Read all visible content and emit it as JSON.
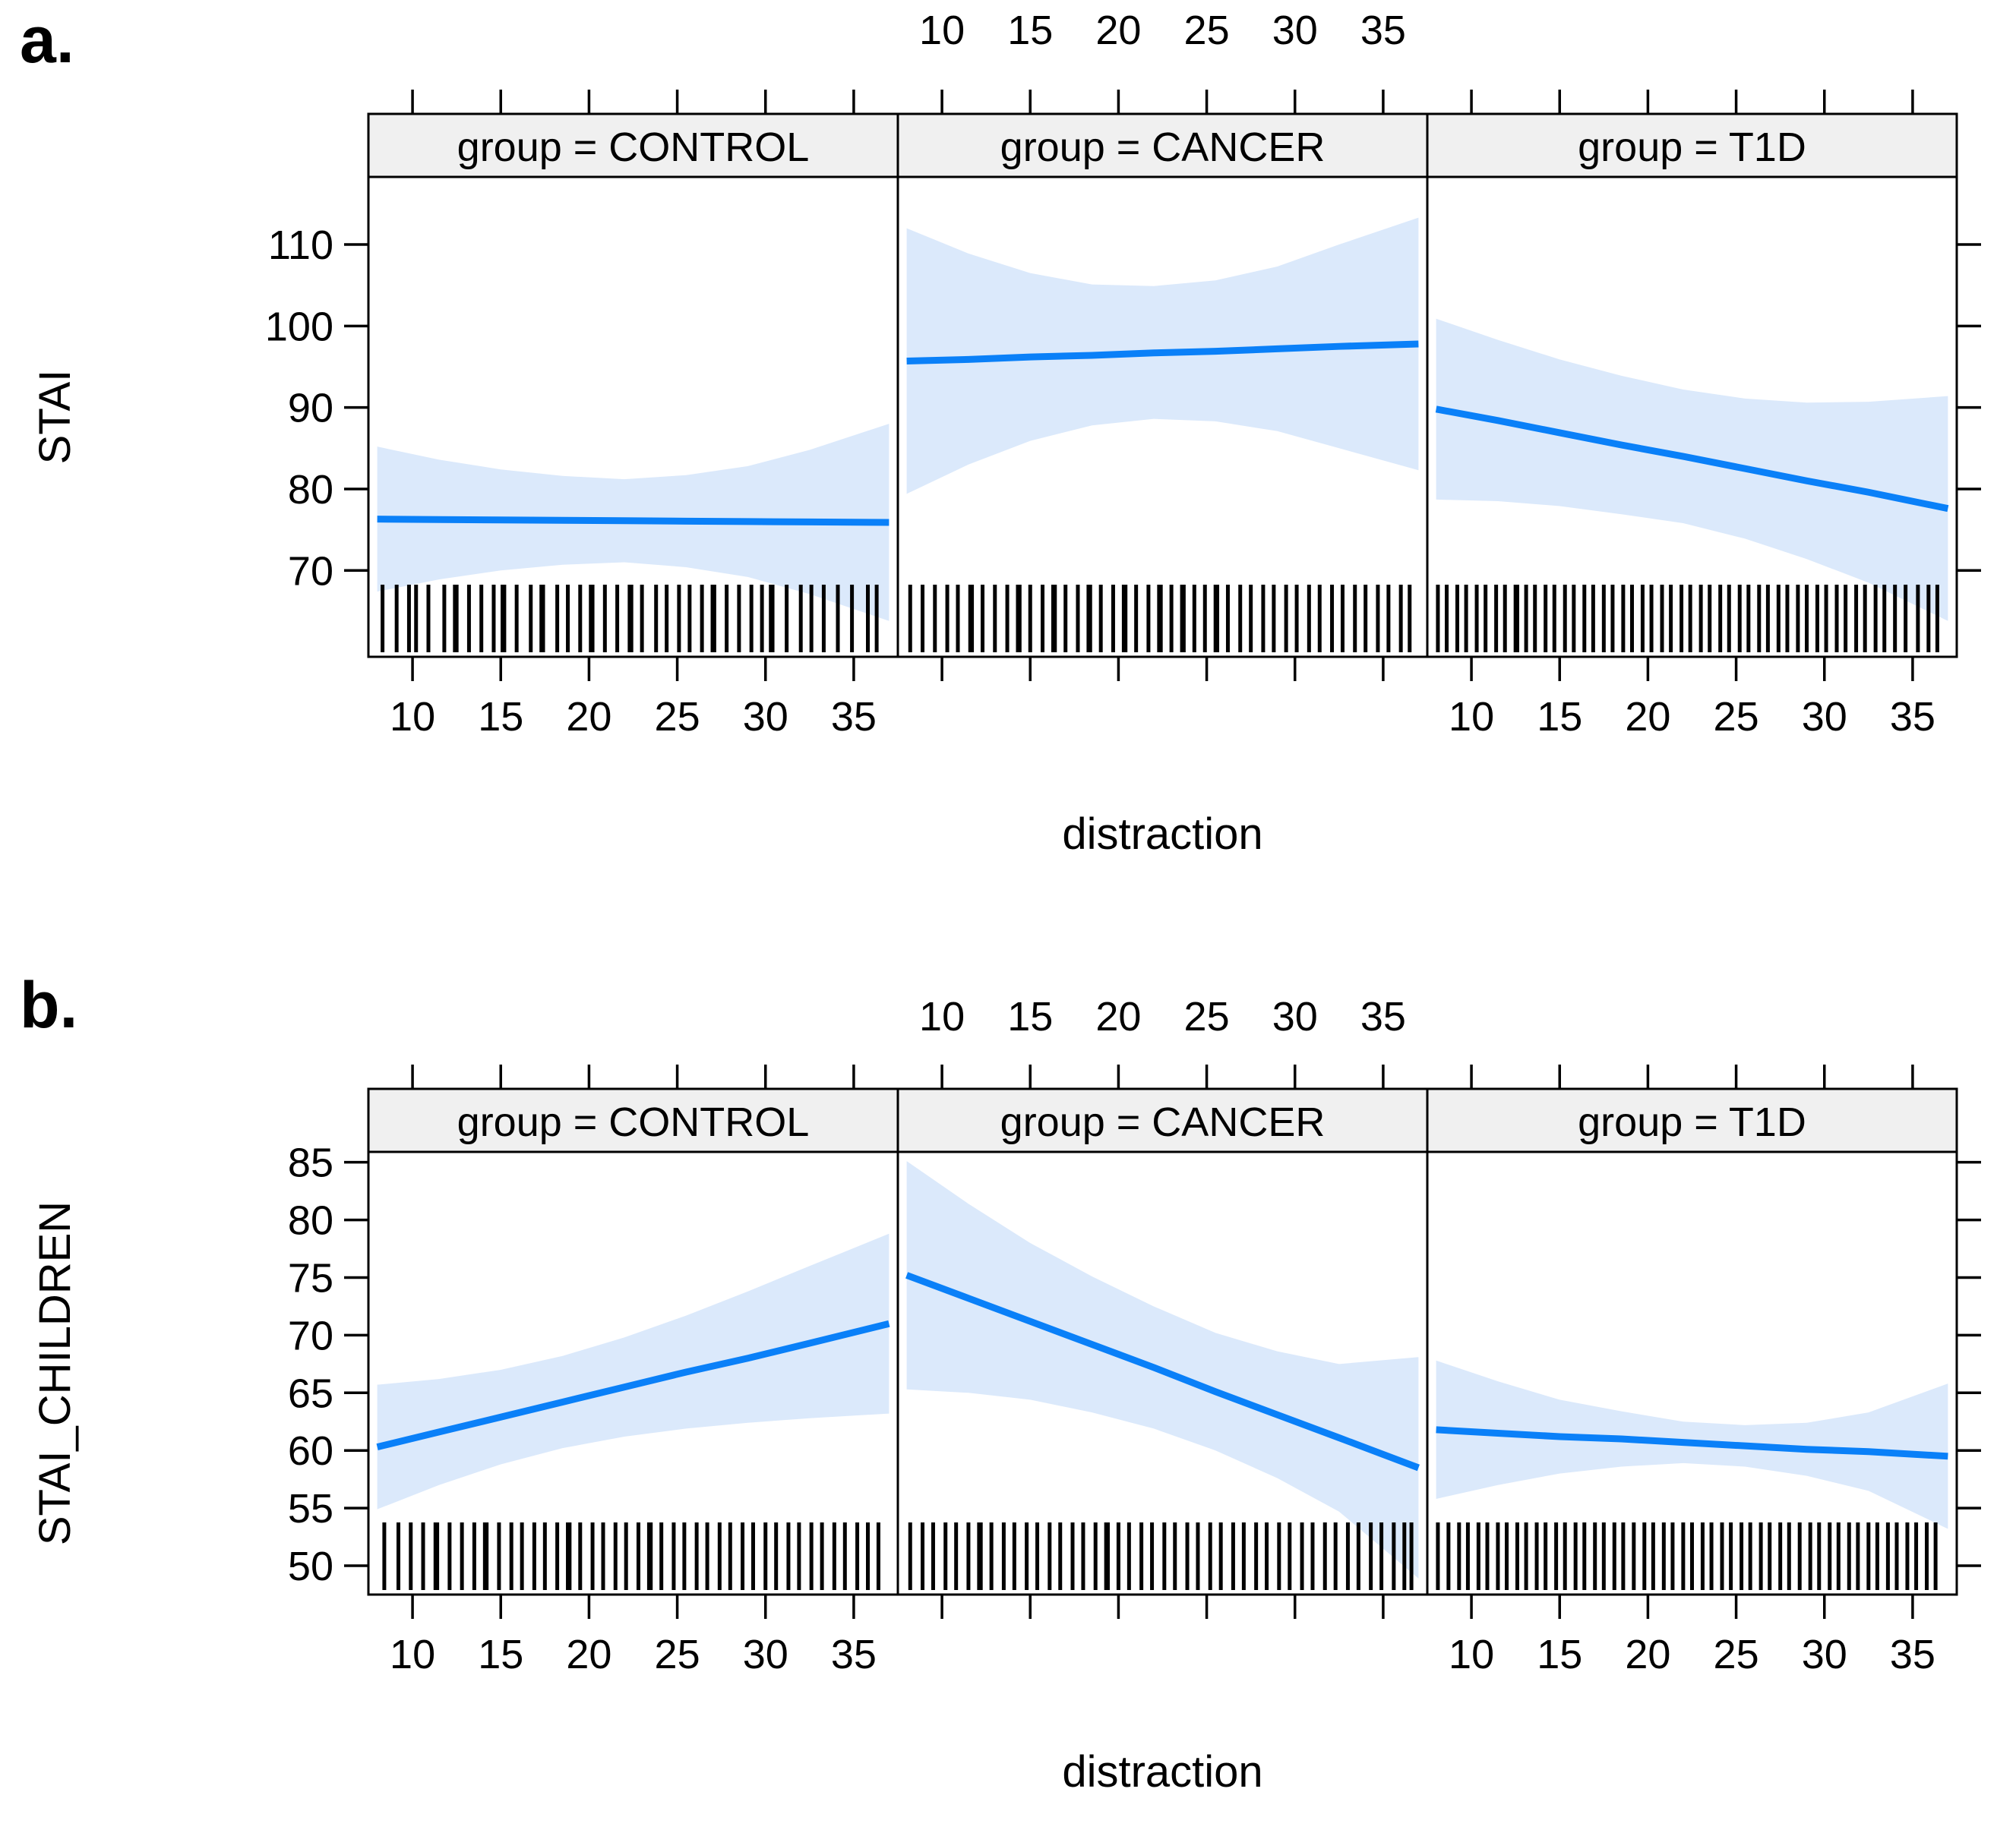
{
  "chart_data": {
    "type": "line",
    "description": "Lattice effect plots: fitted regression lines of distraction on anxiety with 95% confidence bands and data rugs, faceted by group",
    "colors": {
      "line": "#0a80f8",
      "band": "#dbe9fb",
      "strip_bg": "#f0f0f0",
      "border": "#000000",
      "text": "#000000",
      "background": "#ffffff"
    },
    "figures": [
      {
        "tag": "a.",
        "x_title": "distraction",
        "y_title": "STAI",
        "x_ticks": [
          10,
          15,
          20,
          25,
          30,
          35
        ],
        "y_ticks": [
          70,
          80,
          90,
          100,
          110
        ],
        "xlim": [
          7.5,
          37.5
        ],
        "ylim": [
          59.4,
          118.3
        ],
        "x": [
          8,
          11.5,
          15,
          18.5,
          22,
          25.5,
          29,
          32.5,
          37
        ],
        "panels": [
          {
            "strip": "group = CONTROL",
            "line": [
              76.3,
              76.25,
              76.2,
              76.15,
              76.1,
              76.05,
              76.0,
              75.95,
              75.9
            ],
            "upper": [
              85.2,
              83.6,
              82.4,
              81.6,
              81.2,
              81.7,
              82.8,
              84.8,
              88.0
            ],
            "lower": [
              67.4,
              68.9,
              70.0,
              70.7,
              71.0,
              70.4,
              69.2,
              67.1,
              63.8
            ],
            "rug": [
              8.3,
              9.1,
              9.8,
              10.2,
              10.9,
              11.8,
              12.4,
              12.5,
              13.2,
              13.9,
              14.6,
              15.1,
              15.2,
              15.9,
              16.7,
              17.3,
              17.4,
              18.2,
              18.8,
              19.5,
              20.1,
              20.2,
              20.9,
              21.6,
              22.3,
              22.4,
              23.0,
              23.8,
              24.4,
              25.1,
              25.7,
              26.4,
              27.0,
              27.1,
              27.8,
              28.5,
              29.2,
              29.8,
              30.3,
              30.4,
              31.2,
              32.0,
              32.6,
              33.3,
              34.1,
              34.9,
              35.8,
              36.3
            ]
          },
          {
            "strip": "group = CANCER",
            "line": [
              95.7,
              95.9,
              96.2,
              96.4,
              96.7,
              96.9,
              97.2,
              97.5,
              97.8
            ],
            "upper": [
              112.0,
              108.9,
              106.5,
              105.1,
              104.9,
              105.6,
              107.3,
              110.0,
              113.3
            ],
            "lower": [
              79.4,
              83.0,
              85.9,
              87.8,
              88.6,
              88.3,
              87.1,
              85.0,
              82.3
            ],
            "rug": [
              8.2,
              8.9,
              9.6,
              10.3,
              10.9,
              11.6,
              11.7,
              12.3,
              13.0,
              13.7,
              14.3,
              14.4,
              15.0,
              15.7,
              16.3,
              16.4,
              17.0,
              17.7,
              18.3,
              18.4,
              19.0,
              19.7,
              20.3,
              20.4,
              21.0,
              21.7,
              22.3,
              22.4,
              23.0,
              23.6,
              23.7,
              24.3,
              24.9,
              25.5,
              25.6,
              26.2,
              26.9,
              27.5,
              28.2,
              28.8,
              29.5,
              30.1,
              30.8,
              31.4,
              32.1,
              32.7,
              33.4,
              34.0,
              34.7,
              35.3,
              36.0,
              36.5
            ]
          },
          {
            "strip": "group = T1D",
            "line": [
              89.8,
              88.4,
              86.9,
              85.4,
              84.0,
              82.5,
              81.0,
              79.6,
              77.6
            ],
            "upper": [
              100.9,
              98.3,
              95.9,
              93.9,
              92.2,
              91.1,
              90.6,
              90.7,
              91.4
            ],
            "lower": [
              78.7,
              78.5,
              77.9,
              76.9,
              75.8,
              73.9,
              71.4,
              68.5,
              63.8
            ],
            "rug": [
              8.1,
              8.6,
              9.2,
              9.7,
              10.3,
              10.8,
              11.4,
              11.9,
              12.5,
              12.6,
              13.1,
              13.6,
              14.2,
              14.7,
              15.3,
              15.8,
              16.4,
              16.9,
              17.5,
              18.0,
              18.6,
              19.1,
              19.7,
              20.2,
              20.8,
              21.3,
              21.9,
              22.4,
              23.0,
              23.5,
              24.1,
              24.6,
              25.2,
              25.7,
              26.3,
              26.8,
              27.4,
              27.9,
              28.5,
              29.0,
              29.6,
              30.1,
              30.7,
              31.2,
              31.8,
              32.3,
              32.9,
              33.4,
              34.0,
              34.6,
              35.3,
              35.9,
              36.4
            ]
          }
        ]
      },
      {
        "tag": "b.",
        "x_title": "distraction",
        "y_title": "STAI_CHILDREN",
        "x_ticks": [
          10,
          15,
          20,
          25,
          30,
          35
        ],
        "y_ticks": [
          50,
          55,
          60,
          65,
          70,
          75,
          80,
          85
        ],
        "xlim": [
          7.5,
          37.5
        ],
        "ylim": [
          47.5,
          85.9
        ],
        "x": [
          8,
          11.5,
          15,
          18.5,
          22,
          25.5,
          29,
          32.5,
          37
        ],
        "panels": [
          {
            "strip": "group = CONTROL",
            "line": [
              60.3,
              61.6,
              62.9,
              64.2,
              65.5,
              66.8,
              68.0,
              69.3,
              71.0
            ],
            "upper": [
              65.7,
              66.2,
              67.0,
              68.2,
              69.8,
              71.7,
              73.8,
              76.0,
              78.8
            ],
            "lower": [
              54.9,
              57.0,
              58.8,
              60.2,
              61.2,
              61.9,
              62.4,
              62.8,
              63.2
            ],
            "rug": [
              8.4,
              9.2,
              9.9,
              10.6,
              11.3,
              11.4,
              12.1,
              12.8,
              13.5,
              14.1,
              14.2,
              14.9,
              15.6,
              16.2,
              16.9,
              17.5,
              18.2,
              18.8,
              18.9,
              19.5,
              20.2,
              20.8,
              21.5,
              22.1,
              22.8,
              23.4,
              23.5,
              24.1,
              24.8,
              25.4,
              26.1,
              26.7,
              27.4,
              28.0,
              28.7,
              29.3,
              30.0,
              30.6,
              31.3,
              31.9,
              32.6,
              33.2,
              33.9,
              34.5,
              35.2,
              35.8,
              36.4
            ]
          },
          {
            "strip": "group = CANCER",
            "line": [
              75.2,
              73.2,
              71.2,
              69.2,
              67.2,
              65.1,
              63.1,
              61.1,
              58.5
            ],
            "upper": [
              85.1,
              81.4,
              78.0,
              75.1,
              72.5,
              70.2,
              68.6,
              67.5,
              68.1
            ],
            "lower": [
              65.3,
              65.0,
              64.4,
              63.3,
              61.9,
              60.0,
              57.6,
              54.7,
              48.9
            ],
            "rug": [
              8.2,
              8.9,
              9.5,
              10.2,
              10.8,
              11.5,
              12.1,
              12.2,
              12.8,
              13.5,
              14.1,
              14.8,
              15.4,
              16.1,
              16.7,
              17.4,
              18.0,
              18.7,
              19.3,
              19.4,
              20.0,
              20.6,
              21.3,
              21.9,
              22.6,
              23.2,
              23.9,
              24.5,
              25.2,
              25.8,
              26.5,
              27.1,
              27.8,
              28.4,
              29.1,
              29.7,
              30.4,
              31.0,
              31.7,
              32.3,
              33.0,
              33.6,
              34.3,
              34.9,
              35.6,
              36.2,
              36.6
            ]
          },
          {
            "strip": "group = T1D",
            "line": [
              61.8,
              61.5,
              61.2,
              61.0,
              60.7,
              60.4,
              60.1,
              59.9,
              59.5
            ],
            "upper": [
              67.8,
              66.0,
              64.4,
              63.4,
              62.5,
              62.2,
              62.4,
              63.3,
              65.8
            ],
            "lower": [
              55.8,
              57.0,
              58.0,
              58.6,
              58.9,
              58.6,
              57.8,
              56.5,
              53.2
            ],
            "rug": [
              8.1,
              8.7,
              9.3,
              9.8,
              10.4,
              10.9,
              11.5,
              12.0,
              12.6,
              13.1,
              13.7,
              14.2,
              14.8,
              15.3,
              15.9,
              16.4,
              17.0,
              17.5,
              18.1,
              18.6,
              19.2,
              19.8,
              20.3,
              20.9,
              21.4,
              22.0,
              22.5,
              23.1,
              23.6,
              24.2,
              24.7,
              25.3,
              25.8,
              26.4,
              26.9,
              27.5,
              28.0,
              28.6,
              29.2,
              29.7,
              30.3,
              30.8,
              31.4,
              31.9,
              32.5,
              33.0,
              33.6,
              34.1,
              34.7,
              35.2,
              35.8,
              36.3
            ]
          }
        ]
      }
    ]
  }
}
